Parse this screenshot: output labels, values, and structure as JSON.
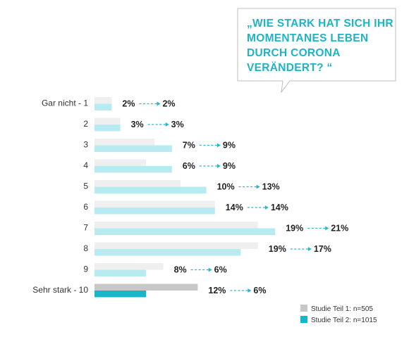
{
  "question": {
    "lines": [
      "„WIE STARK HAT SICH IHR",
      "MOMENTANES LEBEN",
      "DURCH CORONA",
      "VERÄNDERT? “"
    ]
  },
  "colors": {
    "series1": "#efefef",
    "series2": "#b8ebf1",
    "series1_highlight": "#c8c8c8",
    "series2_highlight": "#17b7c9",
    "arrow": "#29b6c8",
    "question_text": "#1fb3c6",
    "bubble_border": "#bdbdbd"
  },
  "chart_data": {
    "type": "bar",
    "orientation": "horizontal",
    "categories": [
      "Gar nicht - 1",
      "2",
      "3",
      "4",
      "5",
      "6",
      "7",
      "8",
      "9",
      "Sehr stark - 10"
    ],
    "series": [
      {
        "name": "Studie Teil 1: n=505",
        "values": [
          2,
          3,
          7,
          6,
          10,
          14,
          19,
          19,
          8,
          12
        ]
      },
      {
        "name": "Studie Teil 2: n=1015",
        "values": [
          2,
          3,
          9,
          9,
          13,
          14,
          21,
          17,
          6,
          6
        ]
      }
    ],
    "value_labels": [
      [
        "2%",
        "2%"
      ],
      [
        "3%",
        "3%"
      ],
      [
        "7%",
        "9%"
      ],
      [
        "6%",
        "9%"
      ],
      [
        "10%",
        "13%"
      ],
      [
        "14%",
        "14%"
      ],
      [
        "19%",
        "21%"
      ],
      [
        "19%",
        "17%"
      ],
      [
        "8%",
        "6%"
      ],
      [
        "12%",
        "6%"
      ]
    ],
    "highlighted_category": "Sehr stark - 10",
    "unit": "%",
    "legend": {
      "placement": "bottom-right"
    }
  },
  "legend": {
    "items": [
      {
        "label": "Studie Teil 1: n=505"
      },
      {
        "label": "Studie Teil 2: n=1015"
      }
    ]
  }
}
